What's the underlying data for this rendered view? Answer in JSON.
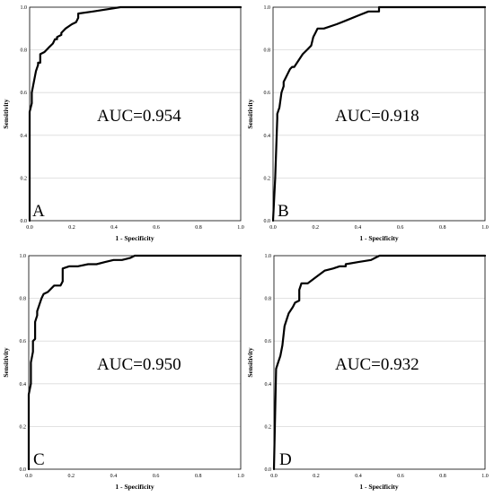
{
  "chart_data": [
    {
      "type": "line",
      "panel_letter": "A",
      "annotation": "AUC=0.954",
      "xlabel": "1 - Specificity",
      "ylabel": "Sensitivity",
      "xlim": [
        0,
        1
      ],
      "ylim": [
        0,
        1
      ],
      "x_ticks": [
        "0.0",
        "0.2",
        "0.4",
        "0.6",
        "0.8",
        "1.0"
      ],
      "y_ticks": [
        "0.0",
        "0.2",
        "0.4",
        "0.6",
        "0.8",
        "1.0"
      ],
      "grid": "horizontal",
      "series": [
        {
          "x": [
            0,
            0,
            0.01,
            0.01,
            0.02,
            0.03,
            0.04,
            0.04,
            0.05,
            0.05,
            0.07,
            0.09,
            0.11,
            0.12,
            0.13,
            0.13,
            0.15,
            0.15,
            0.17,
            0.2,
            0.22,
            0.23,
            0.23,
            0.3,
            0.43,
            1.0
          ],
          "y": [
            0,
            0.51,
            0.55,
            0.6,
            0.65,
            0.7,
            0.73,
            0.74,
            0.74,
            0.78,
            0.79,
            0.81,
            0.83,
            0.85,
            0.85,
            0.86,
            0.87,
            0.88,
            0.9,
            0.92,
            0.93,
            0.95,
            0.97,
            0.98,
            1.0,
            1.0
          ]
        }
      ]
    },
    {
      "type": "line",
      "panel_letter": "B",
      "annotation": "AUC=0.918",
      "xlabel": "1 - Specificity",
      "ylabel": "Sensitivity",
      "xlim": [
        0,
        1
      ],
      "ylim": [
        0,
        1
      ],
      "x_ticks": [
        "0.0",
        "0.2",
        "0.4",
        "0.6",
        "0.8",
        "1.0"
      ],
      "y_ticks": [
        "0.0",
        "0.2",
        "0.4",
        "0.6",
        "0.8",
        "1.0"
      ],
      "grid": "horizontal",
      "series": [
        {
          "x": [
            0,
            0.01,
            0.02,
            0.02,
            0.03,
            0.04,
            0.05,
            0.05,
            0.06,
            0.07,
            0.08,
            0.09,
            0.1,
            0.12,
            0.14,
            0.16,
            0.18,
            0.19,
            0.2,
            0.21,
            0.24,
            0.3,
            0.35,
            0.4,
            0.45,
            0.5,
            0.5,
            1.0
          ],
          "y": [
            0,
            0.2,
            0.48,
            0.5,
            0.53,
            0.6,
            0.63,
            0.65,
            0.67,
            0.69,
            0.71,
            0.72,
            0.72,
            0.75,
            0.78,
            0.8,
            0.82,
            0.86,
            0.88,
            0.9,
            0.9,
            0.92,
            0.94,
            0.96,
            0.98,
            0.98,
            1.0,
            1.0
          ]
        }
      ]
    },
    {
      "type": "line",
      "panel_letter": "C",
      "annotation": "AUC=0.950",
      "xlabel": "1 - Specificity",
      "ylabel": "Sensitivity",
      "xlim": [
        0,
        1
      ],
      "ylim": [
        0,
        1
      ],
      "x_ticks": [
        "0.0",
        "0.2",
        "0.4",
        "0.6",
        "0.8",
        "1.0"
      ],
      "y_ticks": [
        "0.0",
        "0.2",
        "0.4",
        "0.6",
        "0.8",
        "1.0"
      ],
      "grid": "horizontal",
      "series": [
        {
          "x": [
            0,
            0,
            0.01,
            0.01,
            0.02,
            0.02,
            0.03,
            0.03,
            0.04,
            0.04,
            0.05,
            0.06,
            0.07,
            0.09,
            0.12,
            0.15,
            0.16,
            0.16,
            0.19,
            0.23,
            0.28,
            0.32,
            0.36,
            0.4,
            0.44,
            0.48,
            0.5,
            1.0
          ],
          "y": [
            0,
            0.35,
            0.4,
            0.5,
            0.55,
            0.6,
            0.61,
            0.69,
            0.72,
            0.74,
            0.77,
            0.8,
            0.82,
            0.83,
            0.86,
            0.86,
            0.88,
            0.94,
            0.95,
            0.95,
            0.96,
            0.96,
            0.97,
            0.98,
            0.98,
            0.99,
            1.0,
            1.0
          ]
        }
      ]
    },
    {
      "type": "line",
      "panel_letter": "D",
      "annotation": "AUC=0.932",
      "xlabel": "1 - Specificity",
      "ylabel": "Sensitivity",
      "xlim": [
        0,
        1
      ],
      "ylim": [
        0,
        1
      ],
      "x_ticks": [
        "0.0",
        "0.2",
        "0.4",
        "0.6",
        "0.8",
        "1.0"
      ],
      "y_ticks": [
        "0.0",
        "0.2",
        "0.4",
        "0.6",
        "0.8",
        "1.0"
      ],
      "grid": "horizontal",
      "series": [
        {
          "x": [
            0,
            0.01,
            0.02,
            0.03,
            0.04,
            0.05,
            0.06,
            0.07,
            0.09,
            0.1,
            0.12,
            0.12,
            0.13,
            0.16,
            0.16,
            0.2,
            0.24,
            0.28,
            0.31,
            0.34,
            0.34,
            0.4,
            0.46,
            0.48,
            0.5,
            1.0
          ],
          "y": [
            0,
            0.47,
            0.5,
            0.53,
            0.58,
            0.67,
            0.7,
            0.73,
            0.76,
            0.78,
            0.79,
            0.84,
            0.87,
            0.87,
            0.87,
            0.9,
            0.93,
            0.94,
            0.95,
            0.95,
            0.96,
            0.97,
            0.98,
            0.99,
            1.0,
            1.0
          ]
        }
      ]
    }
  ]
}
